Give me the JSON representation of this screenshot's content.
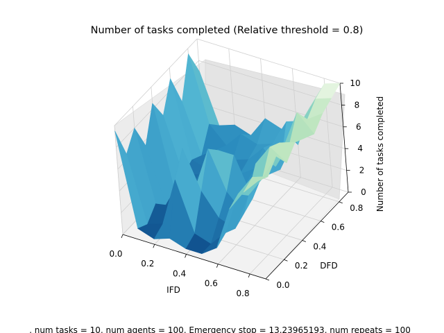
{
  "chart_data": {
    "type": "surface3d",
    "title": "Number of tasks completed (Relative threshold = 0.8)",
    "xlabel": "IFD",
    "ylabel": "DFD",
    "zlabel": "Number of tasks completed",
    "footer": ", num tasks = 10, num agents = 100, Emergency stop = 13.23965193, num repeats = 100",
    "x_ticks": [
      "0.0",
      "0.2",
      "0.4",
      "0.6",
      "0.8"
    ],
    "y_ticks": [
      "0.0",
      "0.2",
      "0.4",
      "0.6",
      "0.8"
    ],
    "z_ticks": [
      "0",
      "2",
      "4",
      "6",
      "8",
      "10"
    ],
    "xlim": [
      0,
      0.9
    ],
    "ylim": [
      0,
      0.9
    ],
    "zlim": [
      0,
      10
    ],
    "grid": true,
    "colormap": "GnBu",
    "x": [
      0.0,
      0.1,
      0.2,
      0.3,
      0.4,
      0.5,
      0.6,
      0.7,
      0.8,
      0.9
    ],
    "y": [
      0.0,
      0.1,
      0.2,
      0.3,
      0.4,
      0.5,
      0.6,
      0.7,
      0.8,
      0.9
    ],
    "z": [
      [
        9.5,
        6.5,
        8.0,
        5.5,
        8.5,
        6.5,
        9.0,
        6.0,
        9.5,
        7.0
      ],
      [
        1.0,
        0.5,
        1.5,
        0.5,
        1.0,
        1.5,
        2.0,
        1.5,
        3.5,
        2.5
      ],
      [
        0.5,
        1.0,
        0.5,
        1.0,
        1.5,
        2.0,
        1.5,
        2.5,
        2.0,
        3.0
      ],
      [
        1.0,
        5.5,
        7.5,
        3.0,
        2.0,
        1.5,
        2.5,
        2.0,
        3.5,
        2.5
      ],
      [
        0.5,
        1.0,
        4.0,
        7.0,
        6.0,
        3.0,
        2.0,
        2.5,
        3.0,
        4.5
      ],
      [
        0.5,
        0.5,
        2.0,
        3.5,
        6.0,
        2.5,
        3.0,
        4.0,
        3.5,
        4.0
      ],
      [
        1.5,
        2.0,
        1.5,
        2.0,
        2.5,
        3.5,
        3.0,
        2.5,
        6.0,
        3.0
      ],
      [
        5.5,
        6.0,
        5.0,
        7.0,
        6.5,
        5.0,
        6.0,
        5.5,
        6.5,
        7.0
      ],
      [
        7.5,
        8.0,
        7.0,
        9.0,
        8.5,
        7.5,
        9.5,
        8.0,
        9.0,
        9.5
      ],
      [
        9.0,
        8.5,
        9.5,
        8.0,
        9.0,
        8.5,
        8.0,
        9.0,
        9.5,
        10.0
      ]
    ]
  }
}
